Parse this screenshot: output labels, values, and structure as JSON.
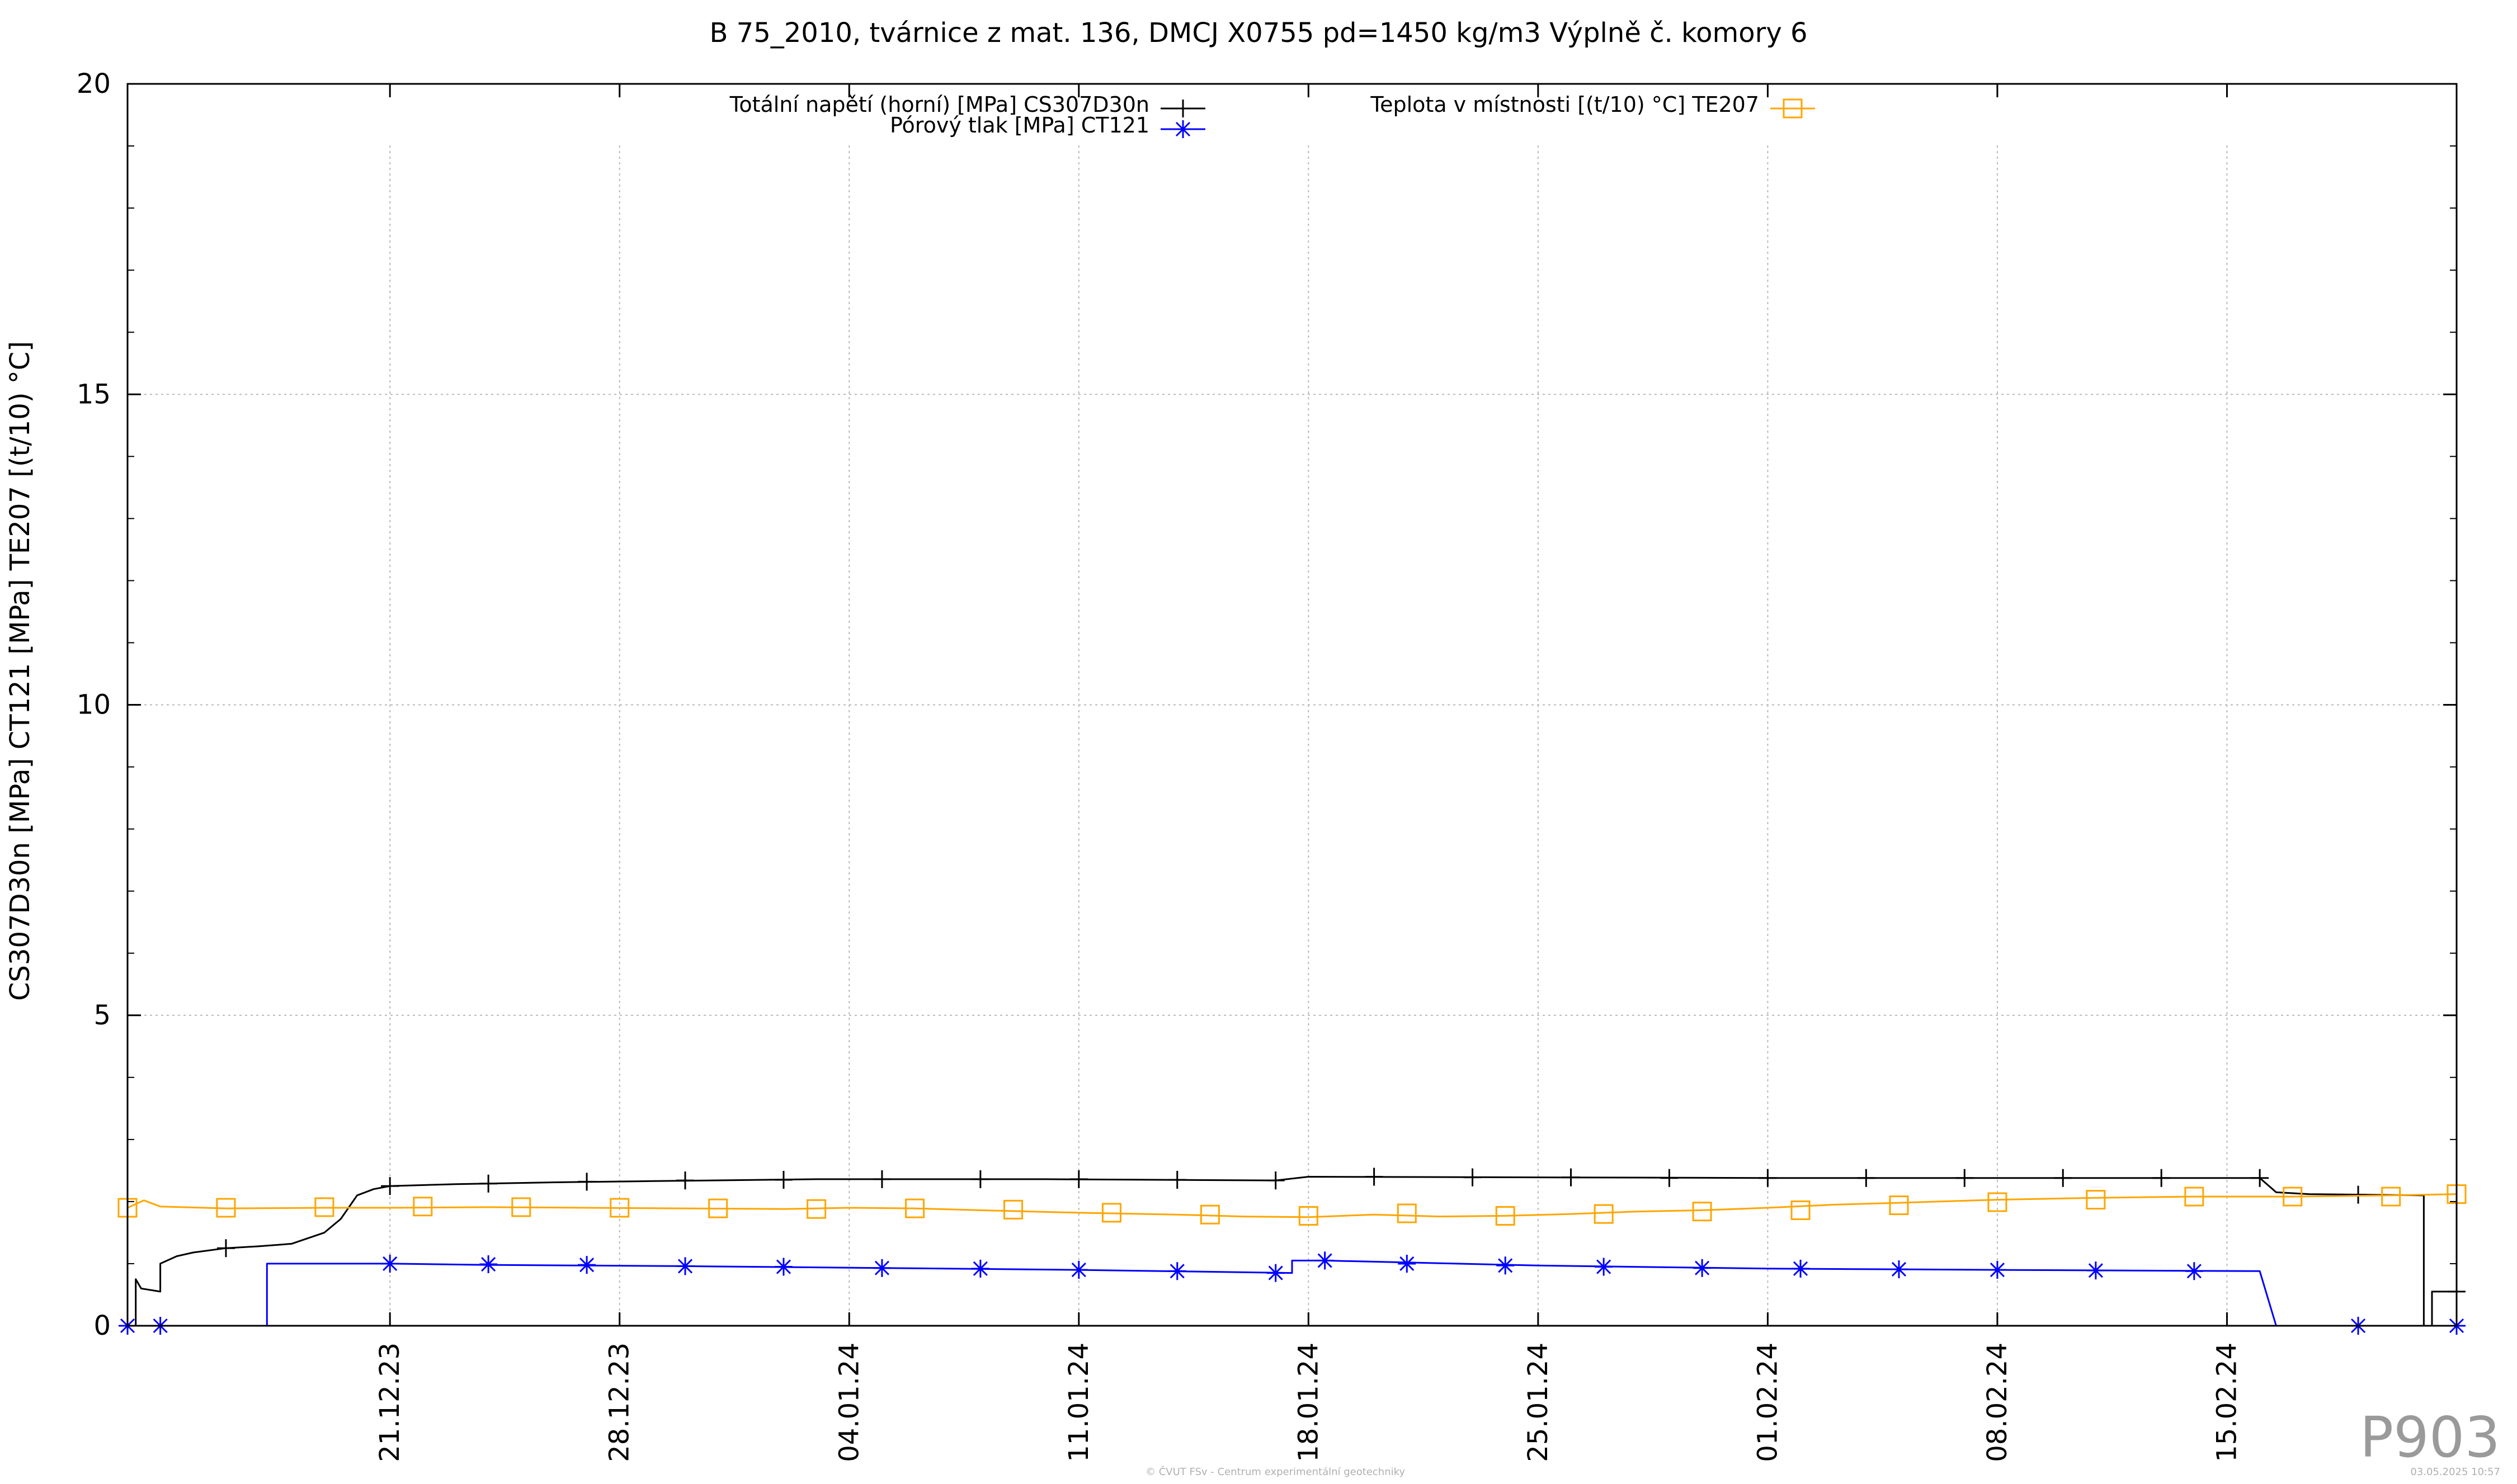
{
  "chart_data": {
    "type": "line",
    "title": "B 75_2010, tvárnice z mat. 136, DMCJ X0755 pd=1450 kg/m3 Výplně č. komory 6",
    "xlabel": "",
    "ylabel": "CS307D30n [MPa] CT121 [MPa] TE207 [(t/10) °C]",
    "xlim": [
      "2023-12-13",
      "2024-02-22"
    ],
    "ylim": [
      0,
      20
    ],
    "yticks": [
      0,
      5,
      10,
      15,
      20
    ],
    "xticks": [
      {
        "date": "2023-12-21",
        "label": "21.12.23"
      },
      {
        "date": "2023-12-28",
        "label": "28.12.23"
      },
      {
        "date": "2024-01-04",
        "label": "04.01.24"
      },
      {
        "date": "2024-01-11",
        "label": "11.01.24"
      },
      {
        "date": "2024-01-18",
        "label": "18.01.24"
      },
      {
        "date": "2024-01-25",
        "label": "25.01.24"
      },
      {
        "date": "2024-02-01",
        "label": "01.02.24"
      },
      {
        "date": "2024-02-08",
        "label": "08.02.24"
      },
      {
        "date": "2024-02-15",
        "label": "15.02.24"
      }
    ],
    "grid": true,
    "legend_position": "top",
    "series": [
      {
        "name": "Totální napětí (horní) [MPa] CS307D30n",
        "color": "#000000",
        "marker": "plus",
        "step": false,
        "points": [
          [
            "2023-12-13T00:00",
            0.0
          ],
          [
            "2023-12-13T06:00",
            0.0
          ],
          [
            "2023-12-13T06:00",
            0.75
          ],
          [
            "2023-12-13T10:00",
            0.6
          ],
          [
            "2023-12-14T00:00",
            0.55
          ],
          [
            "2023-12-14T00:00",
            1.0
          ],
          [
            "2023-12-14T12:00",
            1.12
          ],
          [
            "2023-12-15T00:00",
            1.18
          ],
          [
            "2023-12-16T00:00",
            1.25
          ],
          [
            "2023-12-17T00:00",
            1.28
          ],
          [
            "2023-12-18T00:00",
            1.32
          ],
          [
            "2023-12-19T00:00",
            1.5
          ],
          [
            "2023-12-19T12:00",
            1.72
          ],
          [
            "2023-12-20T00:00",
            2.1
          ],
          [
            "2023-12-20T12:00",
            2.2
          ],
          [
            "2023-12-21T00:00",
            2.25
          ],
          [
            "2023-12-23T00:00",
            2.28
          ],
          [
            "2023-12-26T00:00",
            2.31
          ],
          [
            "2023-12-29T00:00",
            2.33
          ],
          [
            "2024-01-03T00:00",
            2.36
          ],
          [
            "2024-01-10T00:00",
            2.36
          ],
          [
            "2024-01-17T00:00",
            2.34
          ],
          [
            "2024-01-18T00:00",
            2.4
          ],
          [
            "2024-01-25T00:00",
            2.39
          ],
          [
            "2024-02-01T00:00",
            2.38
          ],
          [
            "2024-02-08T00:00",
            2.38
          ],
          [
            "2024-02-16T00:00",
            2.38
          ],
          [
            "2024-02-16T12:00",
            2.15
          ],
          [
            "2024-02-17T12:00",
            2.12
          ],
          [
            "2024-02-21T00:00",
            2.1
          ],
          [
            "2024-02-21T00:00",
            0.0
          ],
          [
            "2024-02-21T06:00",
            0.0
          ],
          [
            "2024-02-21T06:00",
            0.55
          ],
          [
            "2024-02-22T00:00",
            0.55
          ]
        ],
        "markers": [
          [
            "2023-12-16T00:00",
            1.25
          ],
          [
            "2023-12-21T00:00",
            2.25
          ],
          [
            "2023-12-24T00:00",
            2.29
          ],
          [
            "2023-12-27T00:00",
            2.32
          ],
          [
            "2023-12-30T00:00",
            2.34
          ],
          [
            "2024-01-02T00:00",
            2.35
          ],
          [
            "2024-01-05T00:00",
            2.36
          ],
          [
            "2024-01-08T00:00",
            2.36
          ],
          [
            "2024-01-11T00:00",
            2.36
          ],
          [
            "2024-01-14T00:00",
            2.35
          ],
          [
            "2024-01-17T00:00",
            2.34
          ],
          [
            "2024-01-20T00:00",
            2.4
          ],
          [
            "2024-01-23T00:00",
            2.39
          ],
          [
            "2024-01-26T00:00",
            2.39
          ],
          [
            "2024-01-29T00:00",
            2.38
          ],
          [
            "2024-02-01T00:00",
            2.38
          ],
          [
            "2024-02-04T00:00",
            2.38
          ],
          [
            "2024-02-07T00:00",
            2.38
          ],
          [
            "2024-02-10T00:00",
            2.38
          ],
          [
            "2024-02-13T00:00",
            2.38
          ],
          [
            "2024-02-16T00:00",
            2.38
          ],
          [
            "2024-02-19T00:00",
            2.11
          ],
          [
            "2024-02-22T00:00",
            0.55
          ]
        ]
      },
      {
        "name": "Pórový tlak [MPa] CT121",
        "color": "#0000ff",
        "marker": "star",
        "step": true,
        "points": [
          [
            "2023-12-13T00:00",
            0.0
          ],
          [
            "2023-12-17T00:00",
            0.0
          ],
          [
            "2023-12-17T06:00",
            0.0
          ],
          [
            "2023-12-17T06:00",
            1.0
          ],
          [
            "2023-12-21T00:00",
            1.0
          ],
          [
            "2023-12-24T00:00",
            0.98
          ],
          [
            "2023-12-27T00:00",
            0.97
          ],
          [
            "2023-12-30T00:00",
            0.96
          ],
          [
            "2024-01-05T00:00",
            0.93
          ],
          [
            "2024-01-11T00:00",
            0.9
          ],
          [
            "2024-01-17T12:00",
            0.85
          ],
          [
            "2024-01-17T12:00",
            1.05
          ],
          [
            "2024-01-18T12:00",
            1.05
          ],
          [
            "2024-01-25T00:00",
            0.97
          ],
          [
            "2024-02-01T00:00",
            0.92
          ],
          [
            "2024-02-08T00:00",
            0.9
          ],
          [
            "2024-02-16T00:00",
            0.88
          ],
          [
            "2024-02-16T12:00",
            0.0
          ],
          [
            "2024-02-22T00:00",
            0.0
          ]
        ],
        "markers": [
          [
            "2023-12-13T00:00",
            0.0
          ],
          [
            "2023-12-14T00:00",
            0.0
          ],
          [
            "2023-12-21T00:00",
            1.0
          ],
          [
            "2023-12-24T00:00",
            0.99
          ],
          [
            "2023-12-27T00:00",
            0.98
          ],
          [
            "2023-12-30T00:00",
            0.96
          ],
          [
            "2024-01-02T00:00",
            0.95
          ],
          [
            "2024-01-05T00:00",
            0.93
          ],
          [
            "2024-01-08T00:00",
            0.92
          ],
          [
            "2024-01-11T00:00",
            0.9
          ],
          [
            "2024-01-14T00:00",
            0.88
          ],
          [
            "2024-01-17T00:00",
            0.85
          ],
          [
            "2024-01-18T12:00",
            1.05
          ],
          [
            "2024-01-21T00:00",
            1.0
          ],
          [
            "2024-01-24T00:00",
            0.97
          ],
          [
            "2024-01-27T00:00",
            0.95
          ],
          [
            "2024-01-30T00:00",
            0.93
          ],
          [
            "2024-02-02T00:00",
            0.92
          ],
          [
            "2024-02-05T00:00",
            0.91
          ],
          [
            "2024-02-08T00:00",
            0.9
          ],
          [
            "2024-02-11T00:00",
            0.89
          ],
          [
            "2024-02-14T00:00",
            0.88
          ],
          [
            "2024-02-19T00:00",
            0.0
          ],
          [
            "2024-02-22T00:00",
            0.0
          ]
        ]
      },
      {
        "name": "Teplota v místnosti [(t/10) °C] TE207",
        "color": "#ffa500",
        "marker": "square",
        "step": false,
        "points": [
          [
            "2023-12-13T00:00",
            1.9
          ],
          [
            "2023-12-13T12:00",
            2.02
          ],
          [
            "2023-12-14T00:00",
            1.92
          ],
          [
            "2023-12-16T00:00",
            1.89
          ],
          [
            "2023-12-19T00:00",
            1.9
          ],
          [
            "2023-12-21T00:00",
            1.9
          ],
          [
            "2023-12-24T00:00",
            1.91
          ],
          [
            "2023-12-27T00:00",
            1.9
          ],
          [
            "2023-12-30T00:00",
            1.89
          ],
          [
            "2024-01-02T00:00",
            1.88
          ],
          [
            "2024-01-04T00:00",
            1.9
          ],
          [
            "2024-01-06T00:00",
            1.89
          ],
          [
            "2024-01-08T00:00",
            1.86
          ],
          [
            "2024-01-11T00:00",
            1.82
          ],
          [
            "2024-01-14T00:00",
            1.79
          ],
          [
            "2024-01-16T00:00",
            1.76
          ],
          [
            "2024-01-18T00:00",
            1.75
          ],
          [
            "2024-01-20T00:00",
            1.79
          ],
          [
            "2024-01-22T00:00",
            1.76
          ],
          [
            "2024-01-24T00:00",
            1.77
          ],
          [
            "2024-01-26T00:00",
            1.8
          ],
          [
            "2024-01-28T00:00",
            1.84
          ],
          [
            "2024-01-30T00:00",
            1.86
          ],
          [
            "2024-02-01T00:00",
            1.9
          ],
          [
            "2024-02-03T00:00",
            1.95
          ],
          [
            "2024-02-05T00:00",
            1.98
          ],
          [
            "2024-02-08T00:00",
            2.03
          ],
          [
            "2024-02-11T00:00",
            2.06
          ],
          [
            "2024-02-14T00:00",
            2.08
          ],
          [
            "2024-02-17T00:00",
            2.08
          ],
          [
            "2024-02-20T00:00",
            2.1
          ],
          [
            "2024-02-22T00:00",
            2.12
          ]
        ],
        "markers": [
          [
            "2023-12-13T00:00",
            1.9
          ],
          [
            "2023-12-16T00:00",
            1.9
          ],
          [
            "2023-12-19T00:00",
            1.91
          ],
          [
            "2023-12-22T00:00",
            1.92
          ],
          [
            "2023-12-25T00:00",
            1.91
          ],
          [
            "2023-12-28T00:00",
            1.9
          ],
          [
            "2023-12-31T00:00",
            1.89
          ],
          [
            "2024-01-03T00:00",
            1.88
          ],
          [
            "2024-01-06T00:00",
            1.89
          ],
          [
            "2024-01-09T00:00",
            1.87
          ],
          [
            "2024-01-12T00:00",
            1.82
          ],
          [
            "2024-01-15T00:00",
            1.79
          ],
          [
            "2024-01-18T00:00",
            1.77
          ],
          [
            "2024-01-21T00:00",
            1.81
          ],
          [
            "2024-01-24T00:00",
            1.77
          ],
          [
            "2024-01-27T00:00",
            1.8
          ],
          [
            "2024-01-30T00:00",
            1.84
          ],
          [
            "2024-02-02T00:00",
            1.86
          ],
          [
            "2024-02-05T00:00",
            1.94
          ],
          [
            "2024-02-08T00:00",
            1.99
          ],
          [
            "2024-02-11T00:00",
            2.03
          ],
          [
            "2024-02-14T00:00",
            2.08
          ],
          [
            "2024-02-17T00:00",
            2.08
          ],
          [
            "2024-02-20T00:00",
            2.08
          ],
          [
            "2024-02-22T00:00",
            2.12
          ]
        ]
      }
    ]
  },
  "watermark": "P903",
  "footer": {
    "center": "© ČVUT FSv - Centrum experimentální geotechniky",
    "right": "03.05.2025 10:57"
  }
}
